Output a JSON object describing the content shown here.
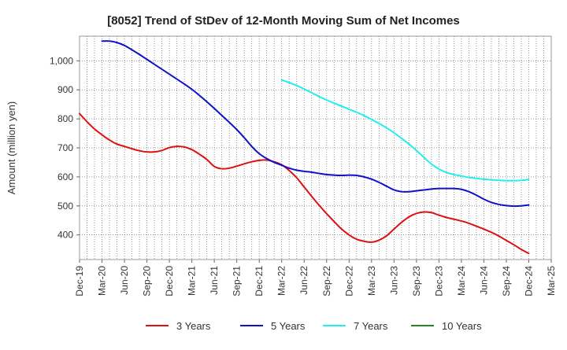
{
  "chart_data": {
    "type": "line",
    "title": "[8052]  Trend of StDev of 12-Month Moving Sum of Net Incomes",
    "xlabel": "",
    "ylabel": "Amount (million yen)",
    "ylim": [
      315,
      1085
    ],
    "yticks": [
      400,
      500,
      600,
      700,
      800,
      900,
      1000
    ],
    "ytick_labels": [
      "400",
      "500",
      "600",
      "700",
      "800",
      "900",
      "1,000"
    ],
    "x_range": [
      "2019-12",
      "2025-03"
    ],
    "xtick_labels": [
      "Dec-19",
      "Mar-20",
      "Jun-20",
      "Sep-20",
      "Dec-20",
      "Mar-21",
      "Jun-21",
      "Sep-21",
      "Dec-21",
      "Mar-22",
      "Jun-22",
      "Sep-22",
      "Dec-22",
      "Mar-23",
      "Jun-23",
      "Sep-23",
      "Dec-23",
      "Mar-24",
      "Jun-24",
      "Sep-24",
      "Dec-24",
      "Mar-25"
    ],
    "grid": true,
    "legend_position": "bottom",
    "series": [
      {
        "name": "3 Years",
        "color": "#dd1111",
        "points": [
          [
            "2019-12",
            818
          ],
          [
            "2020-01",
            790
          ],
          [
            "2020-02",
            765
          ],
          [
            "2020-03",
            745
          ],
          [
            "2020-04",
            727
          ],
          [
            "2020-05",
            713
          ],
          [
            "2020-06",
            705
          ],
          [
            "2020-07",
            697
          ],
          [
            "2020-08",
            690
          ],
          [
            "2020-09",
            686
          ],
          [
            "2020-10",
            686
          ],
          [
            "2020-11",
            691
          ],
          [
            "2020-12",
            701
          ],
          [
            "2021-01",
            705
          ],
          [
            "2021-02",
            703
          ],
          [
            "2021-03",
            694
          ],
          [
            "2021-04",
            678
          ],
          [
            "2021-05",
            660
          ],
          [
            "2021-06",
            636
          ],
          [
            "2021-07",
            628
          ],
          [
            "2021-08",
            630
          ],
          [
            "2021-09",
            637
          ],
          [
            "2021-10",
            645
          ],
          [
            "2021-11",
            652
          ],
          [
            "2021-12",
            657
          ],
          [
            "2022-01",
            658
          ],
          [
            "2022-02",
            652
          ],
          [
            "2022-03",
            642
          ],
          [
            "2022-04",
            622
          ],
          [
            "2022-05",
            597
          ],
          [
            "2022-06",
            565
          ],
          [
            "2022-07",
            533
          ],
          [
            "2022-08",
            502
          ],
          [
            "2022-09",
            473
          ],
          [
            "2022-10",
            446
          ],
          [
            "2022-11",
            420
          ],
          [
            "2022-12",
            400
          ],
          [
            "2023-01",
            385
          ],
          [
            "2023-02",
            378
          ],
          [
            "2023-03",
            375
          ],
          [
            "2023-04",
            382
          ],
          [
            "2023-05",
            397
          ],
          [
            "2023-06",
            420
          ],
          [
            "2023-07",
            443
          ],
          [
            "2023-08",
            462
          ],
          [
            "2023-09",
            474
          ],
          [
            "2023-10",
            479
          ],
          [
            "2023-11",
            477
          ],
          [
            "2023-12",
            468
          ],
          [
            "2024-01",
            460
          ],
          [
            "2024-02",
            454
          ],
          [
            "2024-03",
            448
          ],
          [
            "2024-04",
            440
          ],
          [
            "2024-05",
            430
          ],
          [
            "2024-06",
            420
          ],
          [
            "2024-07",
            409
          ],
          [
            "2024-08",
            396
          ],
          [
            "2024-09",
            381
          ],
          [
            "2024-10",
            366
          ],
          [
            "2024-11",
            350
          ],
          [
            "2024-12",
            336
          ]
        ]
      },
      {
        "name": "5 Years",
        "color": "#1111cc",
        "points": [
          [
            "2020-03",
            1068
          ],
          [
            "2020-04",
            1068
          ],
          [
            "2020-05",
            1063
          ],
          [
            "2020-06",
            1053
          ],
          [
            "2020-07",
            1038
          ],
          [
            "2020-08",
            1022
          ],
          [
            "2020-09",
            1005
          ],
          [
            "2020-10",
            988
          ],
          [
            "2020-11",
            971
          ],
          [
            "2020-12",
            954
          ],
          [
            "2021-01",
            937
          ],
          [
            "2021-02",
            920
          ],
          [
            "2021-03",
            902
          ],
          [
            "2021-04",
            881
          ],
          [
            "2021-05",
            859
          ],
          [
            "2021-06",
            836
          ],
          [
            "2021-07",
            812
          ],
          [
            "2021-08",
            788
          ],
          [
            "2021-09",
            763
          ],
          [
            "2021-10",
            735
          ],
          [
            "2021-11",
            705
          ],
          [
            "2021-12",
            680
          ],
          [
            "2022-01",
            663
          ],
          [
            "2022-02",
            650
          ],
          [
            "2022-03",
            640
          ],
          [
            "2022-04",
            630
          ],
          [
            "2022-05",
            623
          ],
          [
            "2022-06",
            619
          ],
          [
            "2022-07",
            616
          ],
          [
            "2022-08",
            612
          ],
          [
            "2022-09",
            608
          ],
          [
            "2022-10",
            606
          ],
          [
            "2022-11",
            605
          ],
          [
            "2022-12",
            606
          ],
          [
            "2023-01",
            605
          ],
          [
            "2023-02",
            600
          ],
          [
            "2023-03",
            592
          ],
          [
            "2023-04",
            581
          ],
          [
            "2023-05",
            568
          ],
          [
            "2023-06",
            555
          ],
          [
            "2023-07",
            549
          ],
          [
            "2023-08",
            549
          ],
          [
            "2023-09",
            552
          ],
          [
            "2023-10",
            555
          ],
          [
            "2023-11",
            558
          ],
          [
            "2023-12",
            560
          ],
          [
            "2024-01",
            560
          ],
          [
            "2024-02",
            560
          ],
          [
            "2024-03",
            557
          ],
          [
            "2024-04",
            549
          ],
          [
            "2024-05",
            537
          ],
          [
            "2024-06",
            523
          ],
          [
            "2024-07",
            512
          ],
          [
            "2024-08",
            505
          ],
          [
            "2024-09",
            501
          ],
          [
            "2024-10",
            499
          ],
          [
            "2024-11",
            500
          ],
          [
            "2024-12",
            503
          ]
        ]
      },
      {
        "name": "7 Years",
        "color": "#22eeee",
        "points": [
          [
            "2022-03",
            934
          ],
          [
            "2022-04",
            925
          ],
          [
            "2022-05",
            915
          ],
          [
            "2022-06",
            903
          ],
          [
            "2022-07",
            890
          ],
          [
            "2022-08",
            877
          ],
          [
            "2022-09",
            865
          ],
          [
            "2022-10",
            854
          ],
          [
            "2022-11",
            844
          ],
          [
            "2022-12",
            833
          ],
          [
            "2023-01",
            823
          ],
          [
            "2023-02",
            811
          ],
          [
            "2023-03",
            798
          ],
          [
            "2023-04",
            784
          ],
          [
            "2023-05",
            769
          ],
          [
            "2023-06",
            752
          ],
          [
            "2023-07",
            733
          ],
          [
            "2023-08",
            713
          ],
          [
            "2023-09",
            691
          ],
          [
            "2023-10",
            667
          ],
          [
            "2023-11",
            644
          ],
          [
            "2023-12",
            627
          ],
          [
            "2024-01",
            615
          ],
          [
            "2024-02",
            608
          ],
          [
            "2024-03",
            603
          ],
          [
            "2024-04",
            598
          ],
          [
            "2024-05",
            595
          ],
          [
            "2024-06",
            592
          ],
          [
            "2024-07",
            590
          ],
          [
            "2024-08",
            588
          ],
          [
            "2024-09",
            587
          ],
          [
            "2024-10",
            587
          ],
          [
            "2024-11",
            588
          ],
          [
            "2024-12",
            591
          ]
        ]
      },
      {
        "name": "10 Years",
        "color": "#228822",
        "points": []
      }
    ]
  }
}
